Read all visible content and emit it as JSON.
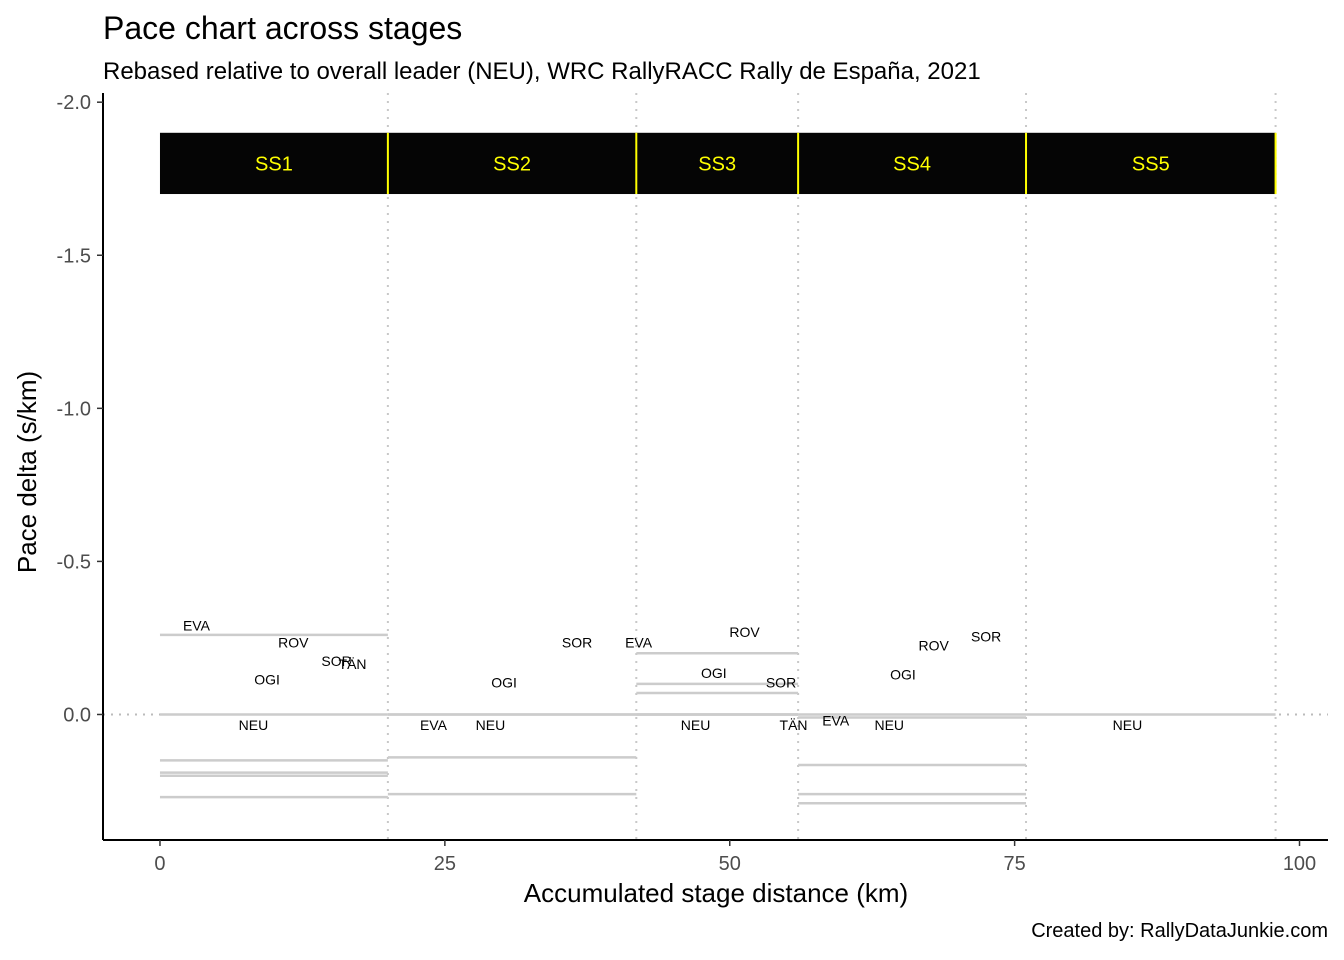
{
  "chart_data": {
    "type": "line",
    "title": "Pace chart across stages",
    "subtitle": "Rebased relative to overall leader (NEU), WRC RallyRACC Rally de España, 2021",
    "caption": "Created by: RallyDataJunkie.com",
    "xlabel": "Accumulated stage distance (km)",
    "ylabel": "Pace delta (s/km)",
    "xlim": [
      -5,
      102.5
    ],
    "ylim": [
      0.41,
      -2.03
    ],
    "y_reversed": true,
    "grid": false,
    "x_ticks": [
      0,
      25,
      50,
      75,
      100
    ],
    "x_tick_labels": [
      "0",
      "25",
      "50",
      "75",
      "100"
    ],
    "y_ticks": [
      -2.0,
      -1.5,
      -1.0,
      -0.5,
      0.0
    ],
    "y_tick_labels": [
      "-2.0",
      "-1.5",
      "-1.0",
      "-0.5",
      "0.0"
    ],
    "stage_boundaries": [
      20.0,
      41.8,
      56.0,
      76.0,
      97.9
    ],
    "stage_band": {
      "y_range": [
        -1.9,
        -1.7
      ],
      "fill": "#050505",
      "text_color": "#ffff00",
      "divider_color": "#ffff00",
      "stages": [
        {
          "label": "SS1",
          "start": 0.0,
          "end": 20.0
        },
        {
          "label": "SS2",
          "start": 20.0,
          "end": 41.8
        },
        {
          "label": "SS3",
          "start": 41.8,
          "end": 56.0
        },
        {
          "label": "SS4",
          "start": 56.0,
          "end": 76.0
        },
        {
          "label": "SS5",
          "start": 76.0,
          "end": 97.9
        }
      ]
    },
    "reference_line": {
      "y": 0.0,
      "style": "dotted",
      "color": "#bbbbbb"
    },
    "segment_color": "#cccccc",
    "segments": [
      {
        "driver": "EVA",
        "x0": 0.0,
        "x1": 20.0,
        "y": -0.26
      },
      {
        "driver": "NEU",
        "x0": 0.0,
        "x1": 20.0,
        "y": 0.0
      },
      {
        "driver": "OGI",
        "x0": 0.0,
        "x1": 20.0,
        "y": 0.15
      },
      {
        "driver": "TÄN",
        "x0": 0.0,
        "x1": 20.0,
        "y": 0.19
      },
      {
        "driver": "SOR",
        "x0": 0.0,
        "x1": 20.0,
        "y": 0.2
      },
      {
        "driver": "ROV",
        "x0": 0.0,
        "x1": 20.0,
        "y": 0.27
      },
      {
        "driver": "EVA",
        "x0": 20.0,
        "x1": 41.8,
        "y": 0.0
      },
      {
        "driver": "NEU",
        "x0": 20.0,
        "x1": 41.8,
        "y": 0.0
      },
      {
        "driver": "OGI",
        "x0": 20.0,
        "x1": 41.8,
        "y": 0.14
      },
      {
        "driver": "SOR",
        "x0": 20.0,
        "x1": 41.8,
        "y": 0.26
      },
      {
        "driver": "EVA",
        "x0": 41.8,
        "x1": 56.0,
        "y": -0.2
      },
      {
        "driver": "OGI",
        "x0": 41.8,
        "x1": 56.0,
        "y": -0.1
      },
      {
        "driver": "SOR",
        "x0": 41.8,
        "x1": 56.0,
        "y": -0.07
      },
      {
        "driver": "NEU",
        "x0": 41.8,
        "x1": 56.0,
        "y": 0.0
      },
      {
        "driver": "TÄN",
        "x0": 41.8,
        "x1": 56.0,
        "y": 0.0
      },
      {
        "driver": "ROV",
        "x0": 41.8,
        "x1": 56.0,
        "y": 0.0
      },
      {
        "driver": "EVA",
        "x0": 56.0,
        "x1": 76.0,
        "y": 0.01
      },
      {
        "driver": "NEU",
        "x0": 56.0,
        "x1": 76.0,
        "y": 0.0
      },
      {
        "driver": "OGI",
        "x0": 56.0,
        "x1": 76.0,
        "y": 0.165
      },
      {
        "driver": "ROV",
        "x0": 56.0,
        "x1": 76.0,
        "y": 0.26
      },
      {
        "driver": "SOR",
        "x0": 56.0,
        "x1": 76.0,
        "y": 0.29
      },
      {
        "driver": "NEU",
        "x0": 76.0,
        "x1": 97.9,
        "y": 0.0
      }
    ],
    "labels": [
      {
        "text": "EVA",
        "x": 3.2,
        "y": -0.29
      },
      {
        "text": "NEU",
        "x": 8.2,
        "y": 0.035
      },
      {
        "text": "OGI",
        "x": 9.4,
        "y": -0.115
      },
      {
        "text": "TÄN",
        "x": 16.9,
        "y": -0.165
      },
      {
        "text": "SOR",
        "x": 15.5,
        "y": -0.175
      },
      {
        "text": "ROV",
        "x": 11.7,
        "y": -0.235
      },
      {
        "text": "EVA",
        "x": 24.0,
        "y": 0.035
      },
      {
        "text": "NEU",
        "x": 29.0,
        "y": 0.035
      },
      {
        "text": "OGI",
        "x": 30.2,
        "y": -0.105
      },
      {
        "text": "SOR",
        "x": 36.6,
        "y": -0.235
      },
      {
        "text": "EVA",
        "x": 42.0,
        "y": -0.235
      },
      {
        "text": "OGI",
        "x": 48.6,
        "y": -0.135
      },
      {
        "text": "SOR",
        "x": 54.5,
        "y": -0.105
      },
      {
        "text": "NEU",
        "x": 47.0,
        "y": 0.035
      },
      {
        "text": "TÄN",
        "x": 55.6,
        "y": 0.035
      },
      {
        "text": "ROV",
        "x": 51.3,
        "y": -0.27
      },
      {
        "text": "EVA",
        "x": 59.3,
        "y": 0.02
      },
      {
        "text": "NEU",
        "x": 64.0,
        "y": 0.035
      },
      {
        "text": "OGI",
        "x": 65.2,
        "y": -0.13
      },
      {
        "text": "ROV",
        "x": 67.9,
        "y": -0.225
      },
      {
        "text": "SOR",
        "x": 72.5,
        "y": -0.255
      },
      {
        "text": "NEU",
        "x": 84.9,
        "y": 0.035
      }
    ]
  }
}
